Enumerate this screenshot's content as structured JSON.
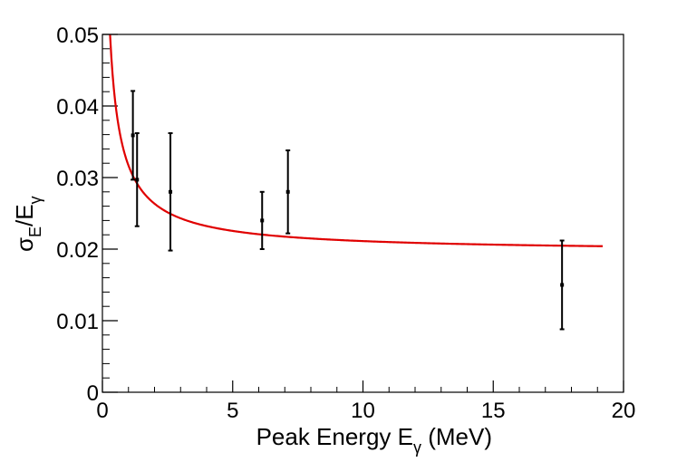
{
  "chart_data": {
    "type": "scatter",
    "title": "",
    "xlabel": {
      "main": "Peak Energy E",
      "subscript": "γ",
      "suffix": " (MeV)"
    },
    "ylabel": {
      "sigma": "σ",
      "sigma_sub": "E",
      "slash_e": "/E",
      "e_sub": "γ"
    },
    "xlim": [
      0,
      20
    ],
    "ylim": [
      0,
      0.05
    ],
    "x_ticks": [
      0,
      5,
      10,
      15,
      20
    ],
    "x_tick_labels": [
      "0",
      "5",
      "10",
      "15",
      "20"
    ],
    "y_ticks": [
      0,
      0.01,
      0.02,
      0.03,
      0.04,
      0.05
    ],
    "y_tick_labels": [
      "0",
      "0.01",
      "0.02",
      "0.03",
      "0.04",
      "0.05"
    ],
    "points": [
      {
        "x": 1.17,
        "y": 0.0359,
        "err": 0.0062
      },
      {
        "x": 1.33,
        "y": 0.0297,
        "err": 0.0065
      },
      {
        "x": 2.61,
        "y": 0.028,
        "err": 0.0082
      },
      {
        "x": 6.13,
        "y": 0.024,
        "err": 0.004
      },
      {
        "x": 7.12,
        "y": 0.028,
        "err": 0.0058
      },
      {
        "x": 17.64,
        "y": 0.015,
        "err": 0.0062
      }
    ],
    "fit": {
      "model": "sqrt(a^2 / E + b^2)",
      "a": 0.0249,
      "b": 0.0196,
      "x_range": [
        0.2,
        19.2
      ],
      "color": "#e00000"
    },
    "marker_color": "#000000",
    "grid": false
  }
}
